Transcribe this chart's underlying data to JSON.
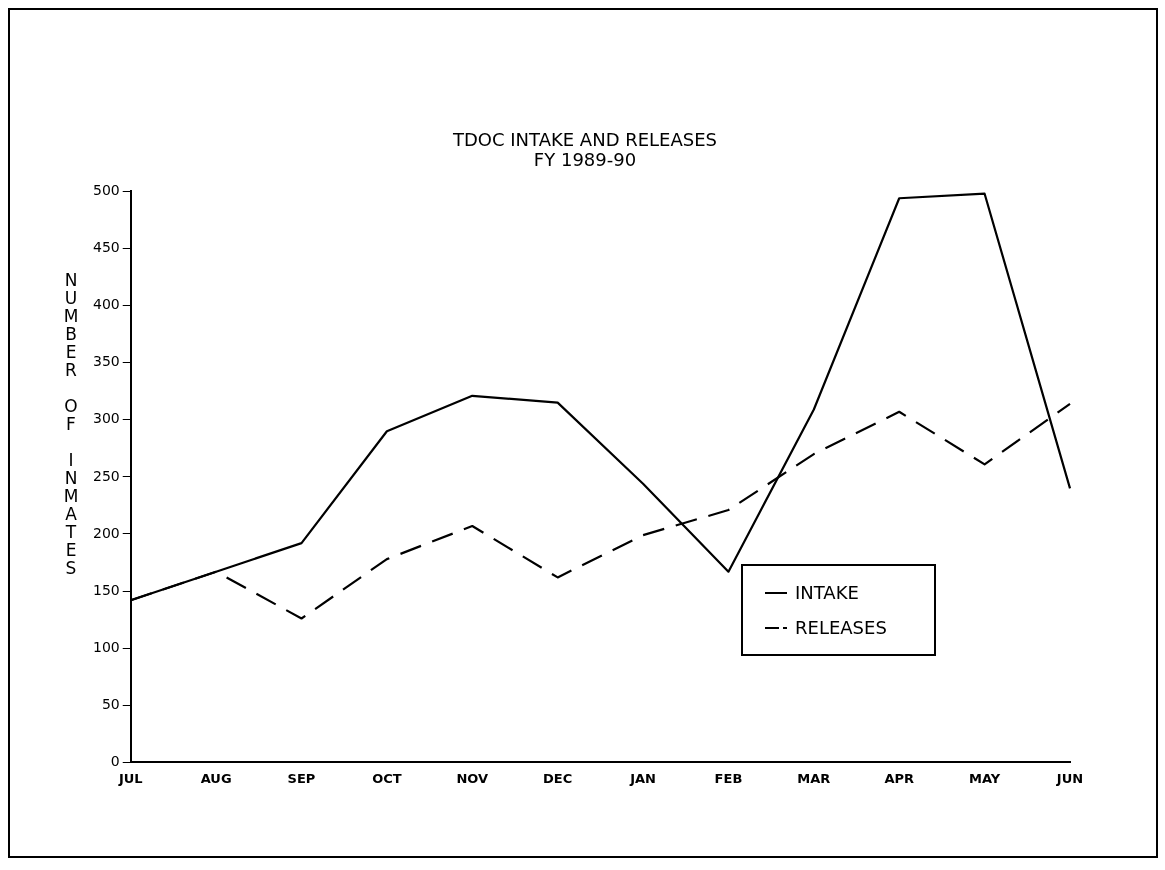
{
  "chart_data": {
    "type": "line",
    "title": "TDOC INTAKE AND RELEASES",
    "subtitle": "FY 1989-90",
    "ylabel": "NUMBER OF INMATES",
    "categories": [
      "JUL",
      "AUG",
      "SEP",
      "OCT",
      "NOV",
      "DEC",
      "JAN",
      "FEB",
      "MAR",
      "APR",
      "MAY",
      "JUN"
    ],
    "series": [
      {
        "name": "INTAKE",
        "color": "#000000",
        "line_style": "solid",
        "values": [
          142,
          167,
          192,
          290,
          321,
          315,
          244,
          167,
          309,
          494,
          498,
          240
        ]
      },
      {
        "name": "RELEASES",
        "color": "#000000",
        "line_style": "dashed",
        "values": [
          142,
          167,
          126,
          178,
          207,
          162,
          199,
          221,
          270,
          307,
          261,
          314
        ]
      }
    ],
    "ylim": [
      0,
      500
    ],
    "yticks": [
      0,
      50,
      100,
      150,
      200,
      250,
      300,
      350,
      400,
      450,
      500
    ],
    "grid": false,
    "legend": "bottom right",
    "marker": "none"
  }
}
